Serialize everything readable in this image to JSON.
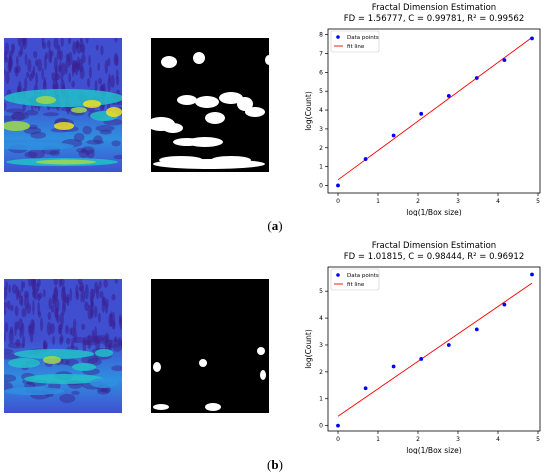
{
  "panels": [
    {
      "caption_open": "(",
      "caption_label": "a",
      "caption_close": ")",
      "heatmap_colors": [
        "#3b1f8f",
        "#3f4fd0",
        "#2f8fe0",
        "#22c1c8",
        "#a0d84a",
        "#f0e020"
      ],
      "mask_colors": [
        "#000000",
        "#ffffff"
      ]
    },
    {
      "caption_open": "(",
      "caption_label": "b",
      "caption_close": ")",
      "heatmap_colors": [
        "#3b1f8f",
        "#3f4fd0",
        "#2f8fe0",
        "#22c1c8",
        "#a0d84a",
        "#f0e020"
      ],
      "mask_colors": [
        "#000000",
        "#ffffff"
      ]
    }
  ],
  "chart_data": [
    {
      "type": "scatter",
      "title": "Fractal Dimension Estimation",
      "subtitle": "FD = 1.56777, C = 0.99781, R² = 0.99562",
      "xlabel": "log(1/Box size)",
      "ylabel": "log(Count)",
      "xlim": [
        -0.25,
        5.05
      ],
      "ylim": [
        -0.4,
        8.3
      ],
      "xticks": [
        0,
        1,
        2,
        3,
        4,
        5
      ],
      "yticks": [
        0,
        1,
        2,
        3,
        4,
        5,
        6,
        7,
        8
      ],
      "grid": false,
      "legend_position": "top-left",
      "series": [
        {
          "name": "Data points",
          "kind": "scatter",
          "color": "#0000ff",
          "x": [
            0,
            0.69,
            1.39,
            2.08,
            2.77,
            3.47,
            4.16,
            4.85
          ],
          "y": [
            0.0,
            1.4,
            2.65,
            3.8,
            4.75,
            5.7,
            6.65,
            7.8
          ]
        },
        {
          "name": "fit line",
          "kind": "line",
          "color": "#ff0000",
          "x": [
            0,
            4.85
          ],
          "y": [
            0.3,
            7.85
          ]
        }
      ]
    },
    {
      "type": "scatter",
      "title": "Fractal Dimension Estimation",
      "subtitle": "FD = 1.01815, C = 0.98444, R² = 0.96912",
      "xlabel": "log(1/Box size)",
      "ylabel": "log(Count)",
      "xlim": [
        -0.25,
        5.05
      ],
      "ylim": [
        -0.2,
        5.9
      ],
      "xticks": [
        0,
        1,
        2,
        3,
        4,
        5
      ],
      "yticks": [
        0,
        1,
        2,
        3,
        4,
        5
      ],
      "grid": false,
      "legend_position": "top-left",
      "series": [
        {
          "name": "Data points",
          "kind": "scatter",
          "color": "#0000ff",
          "x": [
            0,
            0.69,
            1.39,
            2.08,
            2.77,
            3.47,
            4.16,
            4.85
          ],
          "y": [
            0.0,
            1.39,
            2.2,
            2.48,
            3.0,
            3.58,
            4.5,
            5.62
          ]
        },
        {
          "name": "fit line",
          "kind": "line",
          "color": "#ff0000",
          "x": [
            0,
            4.85
          ],
          "y": [
            0.35,
            5.3
          ]
        }
      ]
    }
  ]
}
